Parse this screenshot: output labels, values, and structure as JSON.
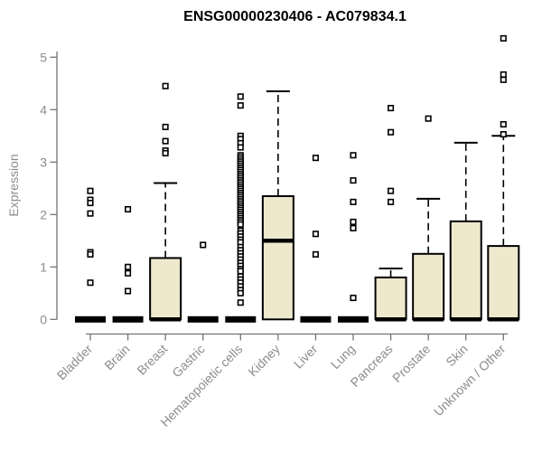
{
  "colors": {
    "box_fill": "#EEE8CD",
    "box_border": "#000000",
    "median": "#000000",
    "whisker": "#000000",
    "outlier_fill": "#FFFFFF",
    "outlier_border": "#000000",
    "axis_line": "#737373",
    "axis_label": "#8C8C8C",
    "title": "#000000",
    "background": "#FFFFFF"
  },
  "chart_data": {
    "type": "boxplot",
    "title": "ENSG00000230406 - AC079834.1",
    "xlabel": "",
    "ylabel": "Expression",
    "ylim": [
      0,
      5.4
    ],
    "y_ticks": [
      0,
      1,
      2,
      3,
      4,
      5
    ],
    "grid": false,
    "legend": false,
    "categories": [
      "Bladder",
      "Brain",
      "Breast",
      "Gastric",
      "Hematopoietic cells",
      "Kidney",
      "Liver",
      "Lung",
      "Pancreas",
      "Prostate",
      "Skin",
      "Unknown / Other"
    ],
    "series": [
      {
        "name": "Bladder",
        "q1": 0,
        "median": 0,
        "q3": 0,
        "whisker_low": 0,
        "whisker_high": 0,
        "outliers": [
          2.45,
          2.28,
          2.22,
          2.02,
          1.28,
          1.24,
          0.7
        ]
      },
      {
        "name": "Brain",
        "q1": 0,
        "median": 0,
        "q3": 0,
        "whisker_low": 0,
        "whisker_high": 0,
        "outliers": [
          2.1,
          1.0,
          0.88,
          0.54
        ]
      },
      {
        "name": "Breast",
        "q1": 0,
        "median": 0,
        "q3": 1.17,
        "whisker_low": 0,
        "whisker_high": 2.6,
        "outliers": [
          4.45,
          3.67,
          3.4,
          3.22,
          3.17
        ]
      },
      {
        "name": "Gastric",
        "q1": 0,
        "median": 0,
        "q3": 0,
        "whisker_low": 0,
        "whisker_high": 0,
        "outliers": [
          1.42
        ]
      },
      {
        "name": "Hematopoietic cells",
        "q1": 0,
        "median": 0,
        "q3": 0,
        "whisker_low": 0,
        "whisker_high": 0,
        "outliers": [
          4.25,
          4.08,
          3.5,
          3.44,
          3.36,
          3.28,
          3.13,
          3.09,
          3.05,
          3.01,
          2.97,
          2.93,
          2.89,
          2.85,
          2.81,
          2.77,
          2.73,
          2.69,
          2.65,
          2.61,
          2.57,
          2.53,
          2.49,
          2.45,
          2.41,
          2.37,
          2.33,
          2.29,
          2.25,
          2.21,
          2.17,
          2.13,
          2.09,
          2.05,
          2.01,
          1.97,
          1.93,
          1.89,
          1.85,
          1.81,
          1.69,
          1.64,
          1.58,
          1.52,
          1.47,
          1.38,
          1.32,
          1.26,
          1.2,
          1.14,
          1.08,
          1.02,
          0.96,
          0.92,
          0.82,
          0.76,
          0.7,
          0.63,
          0.56,
          0.5,
          0.32
        ]
      },
      {
        "name": "Kidney",
        "q1": 0,
        "median": 1.5,
        "q3": 2.35,
        "whisker_low": 0,
        "whisker_high": 4.35,
        "outliers": []
      },
      {
        "name": "Liver",
        "q1": 0,
        "median": 0,
        "q3": 0,
        "whisker_low": 0,
        "whisker_high": 0,
        "outliers": [
          3.08,
          1.63,
          1.24
        ]
      },
      {
        "name": "Lung",
        "q1": 0,
        "median": 0,
        "q3": 0,
        "whisker_low": 0,
        "whisker_high": 0,
        "outliers": [
          3.13,
          2.65,
          2.24,
          1.86,
          1.74,
          0.41
        ]
      },
      {
        "name": "Pancreas",
        "q1": 0,
        "median": 0,
        "q3": 0.8,
        "whisker_low": 0,
        "whisker_high": 0.97,
        "outliers": [
          4.03,
          3.57,
          2.45,
          2.24
        ]
      },
      {
        "name": "Prostate",
        "q1": 0,
        "median": 0,
        "q3": 1.25,
        "whisker_low": 0,
        "whisker_high": 2.3,
        "outliers": [
          3.83
        ]
      },
      {
        "name": "Skin",
        "q1": 0,
        "median": 0,
        "q3": 1.87,
        "whisker_low": 0,
        "whisker_high": 3.37,
        "outliers": []
      },
      {
        "name": "Unknown / Other",
        "q1": 0,
        "median": 0,
        "q3": 1.4,
        "whisker_low": 0,
        "whisker_high": 3.5,
        "outliers": [
          5.36,
          4.67,
          4.57,
          3.72,
          3.53
        ]
      }
    ]
  }
}
